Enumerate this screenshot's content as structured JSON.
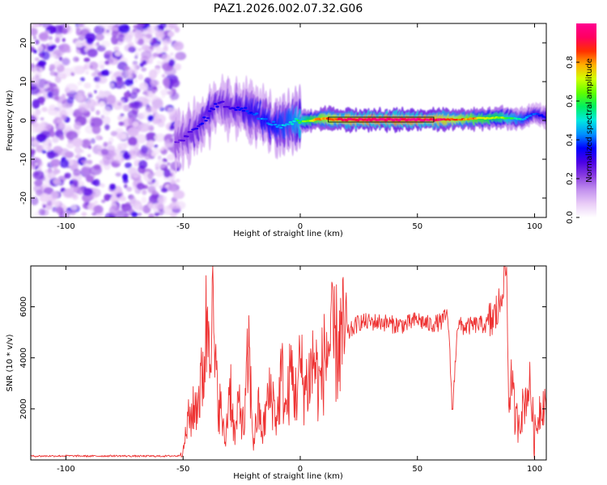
{
  "title": "PAZ1.2026.002.07.32.G06",
  "chart_data": [
    {
      "type": "heatmap",
      "name": "spectrogram",
      "xlabel": "Height of straight line (km)",
      "ylabel": "Frequency (Hz)",
      "xlim": [
        -115,
        105
      ],
      "ylim": [
        -25,
        25
      ],
      "xticks": [
        -100,
        -50,
        0,
        50,
        100
      ],
      "yticks": [
        -20,
        -10,
        0,
        10,
        20
      ],
      "grid": false,
      "colorbar": {
        "label": "Normalized spectral amplitude",
        "range": [
          0,
          1
        ],
        "ticks": [
          "0.0",
          "0.2",
          "0.4",
          "0.6",
          "0.8"
        ],
        "colormap": [
          "#ffffff",
          "#e9ccf7",
          "#c290ee",
          "#8a3de0",
          "#4b00e6",
          "#0000ff",
          "#0090ff",
          "#00e8e0",
          "#00f060",
          "#60ff00",
          "#d0ff00",
          "#ffb000",
          "#ff3000",
          "#ff0060",
          "#ff0090"
        ]
      },
      "noise_region_km": [
        -115,
        -51
      ],
      "signal_center_track": {
        "x": [
          -53,
          -50,
          -47,
          -44,
          -41,
          -38,
          -35,
          -32,
          -29,
          -26,
          -23,
          -20,
          -17,
          -14,
          -11,
          -8,
          -5,
          -2,
          0,
          5,
          10,
          15,
          20,
          30,
          40,
          50,
          60,
          65,
          70,
          75,
          80,
          85,
          90,
          95,
          100,
          105
        ],
        "y": [
          -5,
          -4.5,
          -3.5,
          -2,
          0,
          2.5,
          4.5,
          4,
          3.5,
          3,
          2.5,
          2,
          1,
          0,
          -0.8,
          -1.3,
          -0.8,
          -0.3,
          -0.2,
          0,
          0.5,
          0.3,
          0.2,
          0.2,
          0.2,
          0.2,
          0.2,
          0.3,
          0.3,
          0.5,
          0.6,
          0.8,
          0.6,
          0.3,
          1.8,
          0.8
        ],
        "amplitude": [
          0.25,
          0.28,
          0.3,
          0.32,
          0.35,
          0.35,
          0.32,
          0.3,
          0.32,
          0.35,
          0.38,
          0.4,
          0.42,
          0.45,
          0.45,
          0.48,
          0.5,
          0.55,
          0.6,
          0.75,
          0.85,
          0.9,
          0.95,
          1.0,
          1.0,
          1.0,
          0.95,
          0.9,
          0.85,
          0.8,
          0.75,
          0.7,
          0.6,
          0.5,
          0.4,
          0.35
        ]
      }
    },
    {
      "type": "line",
      "name": "snr",
      "xlabel": "Height of straight line (km)",
      "ylabel": "SNR (10 * v/v)",
      "xlim": [
        -115,
        105
      ],
      "ylim": [
        0,
        7600
      ],
      "xticks": [
        -100,
        -50,
        0,
        50,
        100
      ],
      "yticks": [
        2000,
        4000,
        6000
      ],
      "grid": false,
      "color": "#ee3333",
      "series": [
        {
          "name": "SNR",
          "x": [
            -115,
            -100,
            -90,
            -80,
            -70,
            -60,
            -52,
            -50,
            -48,
            -45,
            -42,
            -40,
            -38,
            -36,
            -34,
            -32,
            -30,
            -28,
            -26,
            -24,
            -22,
            -20,
            -18,
            -16,
            -14,
            -12,
            -10,
            -8,
            -6,
            -4,
            -2,
            0,
            2,
            4,
            6,
            8,
            10,
            12,
            15,
            20,
            25,
            30,
            35,
            40,
            45,
            50,
            55,
            60,
            63,
            65,
            67,
            70,
            75,
            80,
            83,
            85,
            87,
            88,
            89,
            90,
            92,
            95,
            98,
            100,
            102,
            105
          ],
          "y": [
            150,
            160,
            150,
            160,
            150,
            150,
            160,
            300,
            1500,
            2000,
            3000,
            5200,
            6600,
            3000,
            2000,
            600,
            3200,
            800,
            2300,
            1200,
            4300,
            600,
            2000,
            1000,
            2300,
            2600,
            1500,
            3400,
            1800,
            3500,
            2500,
            3600,
            2800,
            3300,
            4000,
            2800,
            3800,
            4500,
            4500,
            4900,
            5400,
            5400,
            5400,
            5300,
            5300,
            5500,
            5300,
            5400,
            5700,
            1800,
            5300,
            5200,
            5300,
            5300,
            5600,
            6000,
            7400,
            7600,
            2000,
            3300,
            1400,
            2000,
            3000,
            800,
            2000,
            2400
          ]
        }
      ]
    }
  ]
}
